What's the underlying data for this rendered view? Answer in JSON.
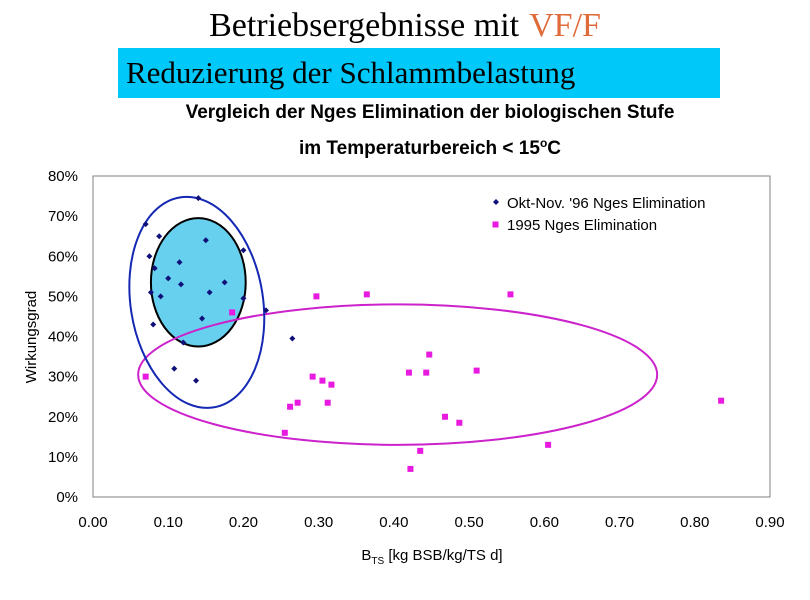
{
  "header": {
    "title_main": "Betriebsergebnisse  mit",
    "title_accent": "VF/F",
    "subtitle": "Reduzierung der Schlammbelastung"
  },
  "colors": {
    "accent": "#e06b3a",
    "band": "#00c8f8",
    "series1": "#10107a",
    "series2": "#e81ae0",
    "ellipse_blue": "#1428b4",
    "ellipse_black": "#000000",
    "ellipse_fill": "#66d0ee",
    "ellipse_magenta": "#cc22cc"
  },
  "chart_data": {
    "type": "scatter",
    "title_line1": "Vergleich der Nges Elimination der biologischen Stufe",
    "title_line2_prefix": "im Temperaturbereich < 15",
    "title_line2_sup": "o",
    "title_line2_suffix": "C",
    "xlabel_main": "B",
    "xlabel_sub": "TS",
    "xlabel_rest": " [kg BSB/kg/TS d]",
    "ylabel": "Wirkungsgrad",
    "xlim": [
      0,
      0.9
    ],
    "ylim": [
      0,
      0.8
    ],
    "x_ticks": [
      0,
      0.1,
      0.2,
      0.3,
      0.4,
      0.5,
      0.6,
      0.7,
      0.8,
      0.9
    ],
    "x_tick_labels": [
      "0.00",
      "0.10",
      "0.20",
      "0.30",
      "0.40",
      "0.50",
      "0.60",
      "0.70",
      "0.80",
      "0.90"
    ],
    "y_ticks": [
      0,
      0.1,
      0.2,
      0.3,
      0.4,
      0.5,
      0.6,
      0.7,
      0.8
    ],
    "y_tick_labels": [
      "0%",
      "10%",
      "20%",
      "30%",
      "40%",
      "50%",
      "60%",
      "70%",
      "80%"
    ],
    "grid": false,
    "legend_position": "top-right",
    "series": [
      {
        "name": "Okt-Nov. '96 Nges Elimination",
        "marker": "diamond",
        "points": [
          [
            0.07,
            0.68
          ],
          [
            0.075,
            0.6
          ],
          [
            0.077,
            0.51
          ],
          [
            0.08,
            0.43
          ],
          [
            0.082,
            0.57
          ],
          [
            0.088,
            0.65
          ],
          [
            0.09,
            0.5
          ],
          [
            0.1,
            0.545
          ],
          [
            0.108,
            0.32
          ],
          [
            0.115,
            0.585
          ],
          [
            0.117,
            0.53
          ],
          [
            0.12,
            0.385
          ],
          [
            0.137,
            0.29
          ],
          [
            0.14,
            0.745
          ],
          [
            0.145,
            0.445
          ],
          [
            0.15,
            0.64
          ],
          [
            0.155,
            0.51
          ],
          [
            0.175,
            0.535
          ],
          [
            0.2,
            0.495
          ],
          [
            0.2,
            0.615
          ],
          [
            0.23,
            0.465
          ],
          [
            0.265,
            0.395
          ]
        ]
      },
      {
        "name": "1995 Nges Elimination",
        "marker": "square",
        "points": [
          [
            0.07,
            0.3
          ],
          [
            0.185,
            0.46
          ],
          [
            0.255,
            0.16
          ],
          [
            0.262,
            0.225
          ],
          [
            0.272,
            0.235
          ],
          [
            0.292,
            0.3
          ],
          [
            0.297,
            0.5
          ],
          [
            0.305,
            0.29
          ],
          [
            0.312,
            0.235
          ],
          [
            0.317,
            0.28
          ],
          [
            0.364,
            0.505
          ],
          [
            0.42,
            0.31
          ],
          [
            0.422,
            0.07
          ],
          [
            0.435,
            0.115
          ],
          [
            0.443,
            0.31
          ],
          [
            0.447,
            0.355
          ],
          [
            0.468,
            0.2
          ],
          [
            0.487,
            0.185
          ],
          [
            0.51,
            0.315
          ],
          [
            0.555,
            0.505
          ],
          [
            0.605,
            0.13
          ],
          [
            0.835,
            0.24
          ]
        ]
      }
    ],
    "annotations": [
      {
        "shape": "ellipse",
        "style": "blue-outline",
        "center": [
          0.138,
          0.485
        ],
        "rx": 0.088,
        "ry": 0.265,
        "rotation_deg": -9
      },
      {
        "shape": "ellipse",
        "style": "black-outline-filled",
        "center": [
          0.14,
          0.535
        ],
        "rx": 0.063,
        "ry": 0.16,
        "rotation_deg": 0
      },
      {
        "shape": "ellipse",
        "style": "magenta-outline",
        "center": [
          0.405,
          0.305
        ],
        "rx": 0.345,
        "ry": 0.175,
        "rotation_deg": 0
      }
    ]
  }
}
